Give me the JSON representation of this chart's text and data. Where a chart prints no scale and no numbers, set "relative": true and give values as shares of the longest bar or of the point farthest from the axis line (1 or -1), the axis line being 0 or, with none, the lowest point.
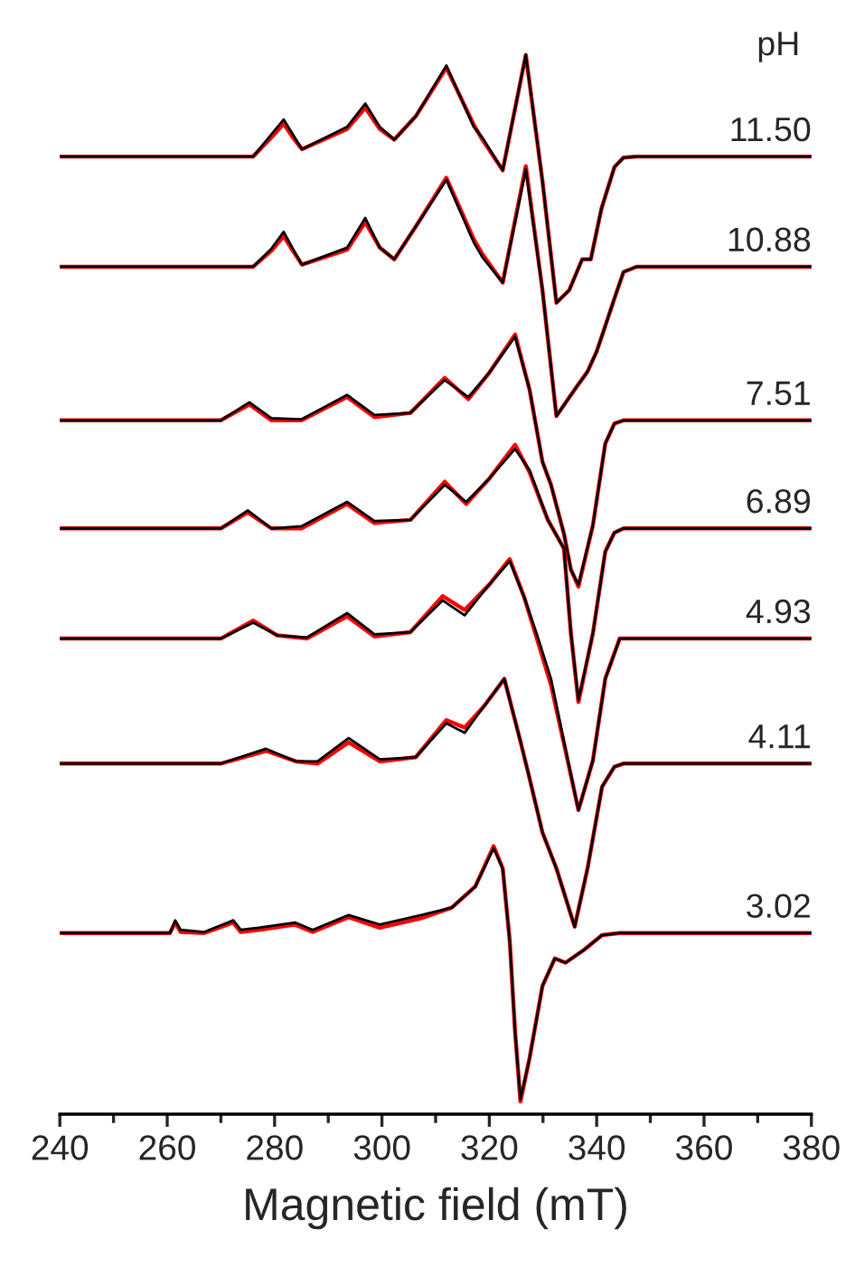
{
  "chart_data": {
    "type": "line",
    "relative": true,
    "xlabel": "Magnetic field (mT)",
    "annotations": [
      "pH"
    ],
    "xlim": [
      240,
      380
    ],
    "xticks": [
      240,
      {
        "value": 250,
        "label": null
      },
      260,
      {
        "value": 270,
        "label": null
      },
      280,
      {
        "value": 290,
        "label": null
      },
      300,
      {
        "value": 310,
        "label": null
      },
      320,
      {
        "value": 330,
        "label": null
      },
      340,
      {
        "value": 350,
        "label": null
      },
      360,
      {
        "value": 370,
        "label": null
      },
      380
    ],
    "grid": false,
    "legend": false,
    "marker": "none",
    "line_style": "solid",
    "series": [
      {
        "color": "#ff0000",
        "x": [
          240,
          276,
          279.4,
          281.7,
          283.4,
          285.1,
          293.5,
          296.9,
          299.6,
          302.3,
          306.3,
          312.0,
          317.1,
          318.7,
          322.5,
          326.8,
          329.9,
          332.5,
          334.9,
          337.3,
          338.9,
          340.9,
          343.3,
          345,
          347.4,
          380
        ],
        "values": [
          0.904,
          0.904,
          0.922,
          0.935,
          0.922,
          0.911,
          0.93,
          0.95,
          0.93,
          0.92,
          0.942,
          0.988,
          0.934,
          0.92,
          0.891,
          1.0,
          0.881,
          0.766,
          0.778,
          0.807,
          0.807,
          0.855,
          0.894,
          0.903,
          0.904,
          0.904
        ]
      },
      {
        "name": "11.50",
        "color": "#000000",
        "x": [
          240,
          276,
          279.4,
          281.7,
          283.4,
          285.1,
          293.5,
          296.9,
          299.6,
          302.3,
          306.3,
          312.0,
          317.1,
          318.7,
          322.5,
          326.8,
          329.9,
          332.5,
          334.9,
          337.3,
          338.9,
          340.9,
          343.3,
          345,
          347.4,
          380
        ],
        "values": [
          0.904,
          0.904,
          0.925,
          0.939,
          0.925,
          0.911,
          0.932,
          0.954,
          0.932,
          0.92,
          0.942,
          0.99,
          0.932,
          0.922,
          0.891,
          1.0,
          0.881,
          0.766,
          0.778,
          0.807,
          0.807,
          0.855,
          0.894,
          0.903,
          0.904,
          0.904
        ]
      },
      {
        "color": "#ff0000",
        "x": [
          240,
          276,
          279.4,
          281.7,
          283.4,
          285.1,
          293.5,
          296.9,
          299.6,
          302.3,
          306.3,
          312.0,
          317.1,
          318.7,
          322.5,
          326.8,
          329.9,
          332.5,
          335.9,
          338.3,
          340.0,
          341.6,
          343.3,
          345,
          347.4,
          380
        ],
        "values": [
          0.8,
          0.8,
          0.815,
          0.829,
          0.815,
          0.802,
          0.816,
          0.842,
          0.818,
          0.807,
          0.838,
          0.884,
          0.826,
          0.812,
          0.785,
          0.895,
          0.778,
          0.659,
          0.684,
          0.701,
          0.72,
          0.744,
          0.77,
          0.795,
          0.8,
          0.8
        ]
      },
      {
        "name": "10.88",
        "color": "#000000",
        "x": [
          240,
          276,
          279.4,
          281.7,
          283.4,
          285.1,
          293.5,
          296.9,
          299.6,
          302.3,
          306.3,
          312.0,
          317.1,
          318.7,
          322.5,
          326.8,
          329.9,
          332.5,
          335.9,
          338.3,
          340.0,
          341.6,
          343.3,
          345,
          347.4,
          380
        ],
        "values": [
          0.8,
          0.8,
          0.817,
          0.833,
          0.817,
          0.802,
          0.818,
          0.846,
          0.818,
          0.807,
          0.838,
          0.882,
          0.823,
          0.809,
          0.785,
          0.892,
          0.778,
          0.659,
          0.684,
          0.701,
          0.72,
          0.744,
          0.77,
          0.795,
          0.8,
          0.8
        ]
      },
      {
        "color": "#ff0000",
        "x": [
          240,
          270,
          275.3,
          279.4,
          285,
          293.5,
          298.6,
          305.3,
          311.7,
          316.1,
          320,
          324.8,
          327.5,
          329.9,
          331.5,
          333.9,
          335.2,
          336.6,
          339.3,
          341.6,
          343.3,
          345,
          380
        ],
        "values": [
          0.655,
          0.655,
          0.67,
          0.655,
          0.655,
          0.677,
          0.658,
          0.662,
          0.695,
          0.675,
          0.7,
          0.736,
          0.684,
          0.616,
          0.594,
          0.548,
          0.514,
          0.498,
          0.556,
          0.633,
          0.652,
          0.655,
          0.655
        ]
      },
      {
        "name": "7.51",
        "color": "#000000",
        "x": [
          240,
          270,
          275.3,
          279.4,
          285,
          293.5,
          298.6,
          305.3,
          311.7,
          316.1,
          320,
          324.8,
          327.5,
          329.9,
          331.5,
          333.9,
          335.2,
          336.6,
          339.3,
          341.6,
          343.3,
          345,
          380
        ],
        "values": [
          0.655,
          0.655,
          0.672,
          0.657,
          0.656,
          0.679,
          0.66,
          0.662,
          0.693,
          0.677,
          0.7,
          0.734,
          0.684,
          0.616,
          0.594,
          0.548,
          0.514,
          0.5,
          0.556,
          0.633,
          0.652,
          0.655,
          0.655
        ]
      },
      {
        "color": "#ff0000",
        "x": [
          240,
          270,
          275,
          279.4,
          285,
          293.5,
          298.6,
          305.3,
          311.7,
          315.7,
          320,
          324.8,
          327.5,
          330.9,
          333.9,
          335.2,
          336.6,
          339.3,
          341.6,
          343.3,
          345,
          380
        ],
        "values": [
          0.553,
          0.553,
          0.568,
          0.553,
          0.553,
          0.576,
          0.558,
          0.561,
          0.597,
          0.576,
          0.6,
          0.632,
          0.606,
          0.561,
          0.534,
          0.454,
          0.389,
          0.454,
          0.531,
          0.549,
          0.553,
          0.553
        ]
      },
      {
        "name": "6.89",
        "color": "#000000",
        "x": [
          240,
          270,
          275,
          279.4,
          285,
          293.5,
          298.6,
          305.3,
          311.7,
          315.7,
          320,
          324.8,
          327.5,
          330.9,
          333.9,
          335.2,
          336.6,
          339.3,
          341.6,
          343.3,
          345,
          380
        ],
        "values": [
          0.553,
          0.553,
          0.57,
          0.553,
          0.555,
          0.578,
          0.56,
          0.561,
          0.594,
          0.578,
          0.6,
          0.628,
          0.608,
          0.561,
          0.534,
          0.454,
          0.391,
          0.454,
          0.531,
          0.549,
          0.553,
          0.553
        ]
      },
      {
        "color": "#ff0000",
        "x": [
          240,
          270,
          276.0,
          280.5,
          286,
          293.5,
          298.6,
          305.3,
          311.3,
          315.4,
          320,
          323.8,
          326.5,
          328.8,
          331.5,
          333.9,
          336.6,
          339.3,
          341.6,
          344.3,
          380
        ],
        "values": [
          0.449,
          0.449,
          0.466,
          0.452,
          0.449,
          0.47,
          0.451,
          0.455,
          0.489,
          0.476,
          0.5,
          0.524,
          0.488,
          0.45,
          0.405,
          0.35,
          0.287,
          0.334,
          0.411,
          0.449,
          0.449
        ]
      },
      {
        "name": "4.93",
        "color": "#000000",
        "x": [
          240,
          270,
          276.0,
          280.5,
          286,
          293.5,
          298.6,
          305.3,
          311.3,
          315.4,
          320,
          323.8,
          326.5,
          328.8,
          331.5,
          333.9,
          336.6,
          339.3,
          341.6,
          344.3,
          380
        ],
        "values": [
          0.449,
          0.449,
          0.464,
          0.452,
          0.45,
          0.473,
          0.453,
          0.455,
          0.485,
          0.471,
          0.5,
          0.522,
          0.488,
          0.454,
          0.411,
          0.352,
          0.287,
          0.334,
          0.411,
          0.449,
          0.449
        ]
      },
      {
        "color": "#ff0000",
        "x": [
          240,
          270,
          278.4,
          284,
          288,
          293.8,
          299.6,
          306.3,
          312.0,
          315.4,
          319,
          322.8,
          325.8,
          327.5,
          329.9,
          332.5,
          335.9,
          338.3,
          341.0,
          343.3,
          345,
          380
        ],
        "values": [
          0.331,
          0.331,
          0.343,
          0.333,
          0.331,
          0.351,
          0.333,
          0.337,
          0.372,
          0.365,
          0.385,
          0.411,
          0.352,
          0.317,
          0.266,
          0.232,
          0.177,
          0.232,
          0.309,
          0.328,
          0.331,
          0.331
        ]
      },
      {
        "name": "4.11",
        "color": "#000000",
        "x": [
          240,
          270,
          278.4,
          284,
          288,
          293.8,
          299.6,
          306.3,
          312.0,
          315.4,
          319,
          322.8,
          325.8,
          327.5,
          329.9,
          332.5,
          335.9,
          338.3,
          341.0,
          343.3,
          345,
          380
        ],
        "values": [
          0.331,
          0.331,
          0.345,
          0.333,
          0.333,
          0.355,
          0.335,
          0.337,
          0.369,
          0.36,
          0.385,
          0.411,
          0.352,
          0.317,
          0.266,
          0.232,
          0.177,
          0.232,
          0.309,
          0.328,
          0.331,
          0.331
        ]
      },
      {
        "color": "#ff0000",
        "x": [
          240,
          260.5,
          261.5,
          262.5,
          266.9,
          272.3,
          273.7,
          277.0,
          283.8,
          287.1,
          293.8,
          299.6,
          307.3,
          313.0,
          317.4,
          320.8,
          322.5,
          323.8,
          324.8,
          325.8,
          327.5,
          329.9,
          332.2,
          334.2,
          337.6,
          341.0,
          344.3,
          380
        ],
        "values": [
          0.171,
          0.171,
          0.181,
          0.172,
          0.171,
          0.181,
          0.172,
          0.174,
          0.179,
          0.172,
          0.186,
          0.176,
          0.185,
          0.195,
          0.215,
          0.253,
          0.232,
          0.164,
          0.078,
          0.012,
          0.053,
          0.121,
          0.147,
          0.143,
          0.155,
          0.169,
          0.171,
          0.171
        ]
      },
      {
        "name": "3.02",
        "color": "#000000",
        "x": [
          240,
          260.5,
          261.5,
          262.5,
          266.9,
          272.3,
          273.7,
          277.0,
          283.8,
          287.1,
          293.8,
          299.6,
          307.3,
          313.0,
          317.4,
          320.8,
          322.5,
          323.8,
          324.8,
          325.8,
          327.5,
          329.9,
          332.2,
          334.2,
          337.6,
          341.0,
          344.3,
          380
        ],
        "values": [
          0.171,
          0.171,
          0.183,
          0.174,
          0.172,
          0.183,
          0.174,
          0.176,
          0.181,
          0.174,
          0.188,
          0.179,
          0.188,
          0.195,
          0.215,
          0.251,
          0.232,
          0.164,
          0.078,
          0.014,
          0.053,
          0.121,
          0.147,
          0.143,
          0.155,
          0.169,
          0.171,
          0.171
        ]
      }
    ]
  }
}
